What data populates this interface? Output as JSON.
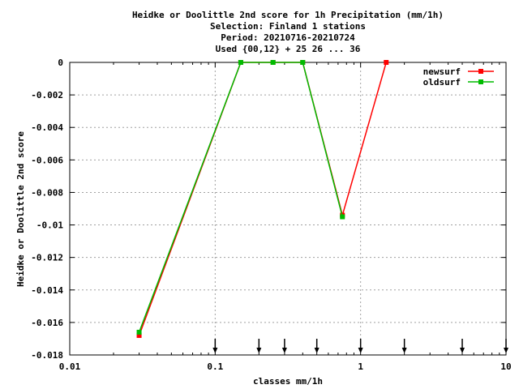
{
  "chart_data": {
    "type": "line",
    "title_lines": [
      "Heidke or Doolittle 2nd score  for 1h Precipitation (mm/1h)",
      "Selection: Finland      1 stations",
      "Period: 20210716-20210724",
      "Used {00,12} + 25 26 ... 36"
    ],
    "xlabel": "classes mm/1h",
    "ylabel": "Heidke or Doolittle 2nd score",
    "x_scale": "log",
    "xlim": [
      0.01,
      10
    ],
    "ylim": [
      -0.018,
      0
    ],
    "x_ticks": [
      0.01,
      0.1,
      1,
      10
    ],
    "x_tick_labels": [
      "0.01",
      "0.1",
      "1",
      "10"
    ],
    "y_ticks": [
      0,
      -0.002,
      -0.004,
      -0.006,
      -0.008,
      -0.01,
      -0.012,
      -0.014,
      -0.016,
      -0.018
    ],
    "y_tick_labels": [
      "0",
      "-0.002",
      "-0.004",
      "-0.006",
      "-0.008",
      "-0.01",
      "-0.012",
      "-0.014",
      "-0.016",
      "-0.018"
    ],
    "grid": true,
    "legend_position": "top-right",
    "arrow_markers_x": [
      0.1,
      0.2,
      0.3,
      0.5,
      1,
      2,
      5,
      10
    ],
    "series": [
      {
        "name": "newsurf",
        "color": "#ff0000",
        "x": [
          0.03,
          0.15,
          0.25,
          0.4,
          0.75,
          1.5
        ],
        "y": [
          -0.0168,
          0,
          0,
          0,
          -0.0094,
          0
        ]
      },
      {
        "name": "oldsurf",
        "color": "#00bb00",
        "x": [
          0.03,
          0.15,
          0.25,
          0.4,
          0.75
        ],
        "y": [
          -0.0166,
          0,
          0,
          0,
          -0.0095
        ]
      }
    ]
  }
}
